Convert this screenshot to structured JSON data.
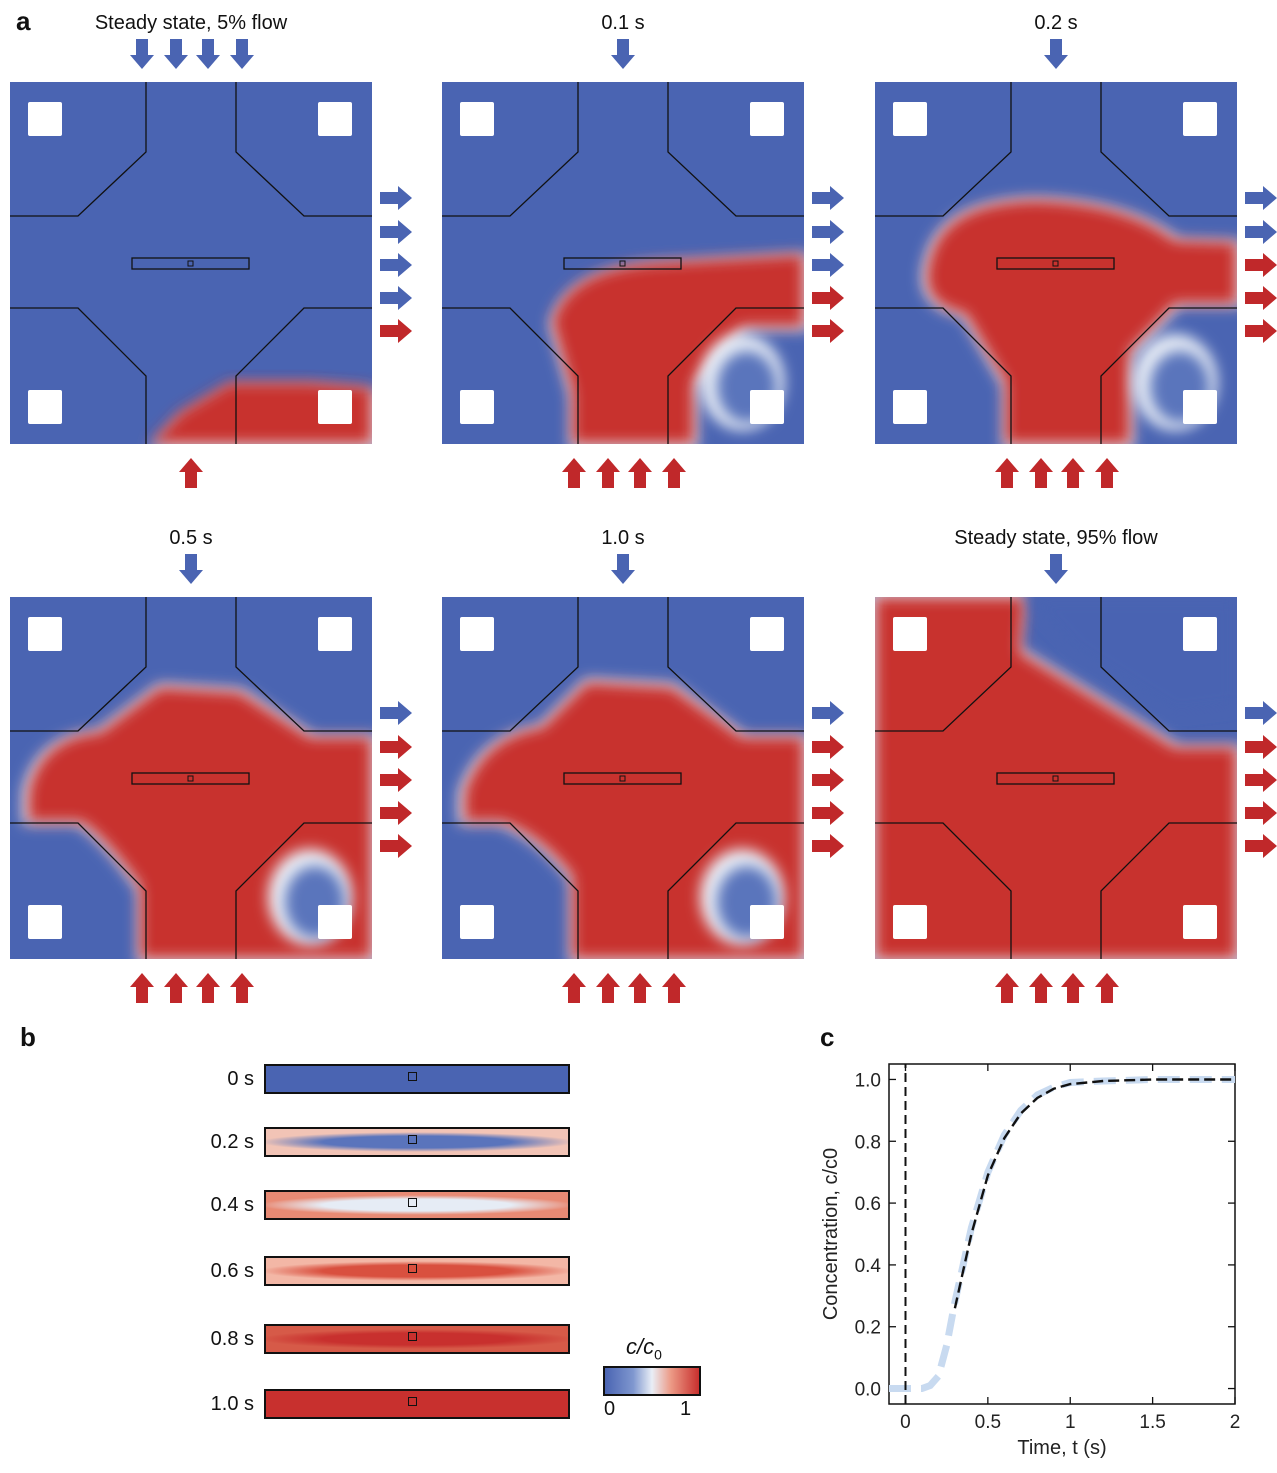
{
  "panel_a": {
    "letter": "a",
    "frames": [
      {
        "label": "Steady state, 5% flow",
        "top_blue": 4,
        "bottom_red": 1,
        "right_blue": 4,
        "right_red": 1
      },
      {
        "label": "0.1 s",
        "top_blue": 1,
        "bottom_red": 4,
        "right_blue": 3,
        "right_red": 2
      },
      {
        "label": "0.2 s",
        "top_blue": 1,
        "bottom_red": 4,
        "right_blue": 2,
        "right_red": 3
      },
      {
        "label": "0.5 s",
        "top_blue": 1,
        "bottom_red": 4,
        "right_blue": 1,
        "right_red": 4
      },
      {
        "label": "1.0 s",
        "top_blue": 1,
        "bottom_red": 4,
        "right_blue": 1,
        "right_red": 4
      },
      {
        "label": "Steady state, 95% flow",
        "top_blue": 1,
        "bottom_red": 4,
        "right_blue": 1,
        "right_red": 4
      }
    ]
  },
  "panel_b": {
    "letter": "b",
    "rows": [
      {
        "label": "0 s",
        "fill": 0.0
      },
      {
        "label": "0.2 s",
        "fill": 0.2
      },
      {
        "label": "0.4 s",
        "fill": 0.6
      },
      {
        "label": "0.6 s",
        "fill": 0.85
      },
      {
        "label": "0.8 s",
        "fill": 0.97
      },
      {
        "label": "1.0 s",
        "fill": 1.0
      }
    ],
    "colorbar": {
      "title_c": "c",
      "title_c0": "c",
      "title_sub": "0",
      "min_label": "0",
      "max_label": "1"
    }
  },
  "colors": {
    "blue": "#4a64b2",
    "red": "#c8302e",
    "light": "#e9eef6",
    "arrow_blue": "#4a64b2",
    "arrow_red": "#c0282a"
  },
  "panel_c": {
    "letter": "c"
  },
  "chart_data": {
    "type": "line",
    "xlabel": "Time, t (s)",
    "ylabel": "Concentration, c/c0",
    "xlim": [
      -0.1,
      2.0
    ],
    "ylim": [
      -0.05,
      1.05
    ],
    "xticks": [
      0,
      0.5,
      1,
      1.5,
      2
    ],
    "xtick_labels": [
      "0",
      "0.5",
      "1",
      "1.5",
      "2"
    ],
    "yticks": [
      0.0,
      0.2,
      0.4,
      0.6,
      0.8,
      1.0
    ],
    "ytick_labels": [
      "0.0",
      "0.2",
      "0.4",
      "0.6",
      "0.8",
      "1.0"
    ],
    "series": [
      {
        "style": "solid-light-blue",
        "x": [
          -0.1,
          0.0,
          0.1,
          0.15,
          0.2,
          0.25,
          0.3,
          0.4,
          0.5,
          0.6,
          0.7,
          0.8,
          0.9,
          1.0,
          1.2,
          1.5,
          2.0
        ],
        "y": [
          0.0,
          0.0,
          0.0,
          0.01,
          0.04,
          0.14,
          0.28,
          0.52,
          0.7,
          0.82,
          0.9,
          0.95,
          0.975,
          0.99,
          0.995,
          1.0,
          1.0
        ]
      },
      {
        "style": "dashed-black",
        "x": [
          0.3,
          0.35,
          0.4,
          0.5,
          0.6,
          0.7,
          0.8,
          0.9,
          1.0,
          1.2,
          1.5,
          2.0
        ],
        "y": [
          0.26,
          0.38,
          0.5,
          0.69,
          0.81,
          0.89,
          0.94,
          0.97,
          0.985,
          0.995,
          1.0,
          1.0
        ]
      },
      {
        "style": "dashed-black-vertical",
        "x": [
          0.0,
          0.0
        ],
        "y": [
          -0.05,
          1.05
        ]
      }
    ]
  }
}
